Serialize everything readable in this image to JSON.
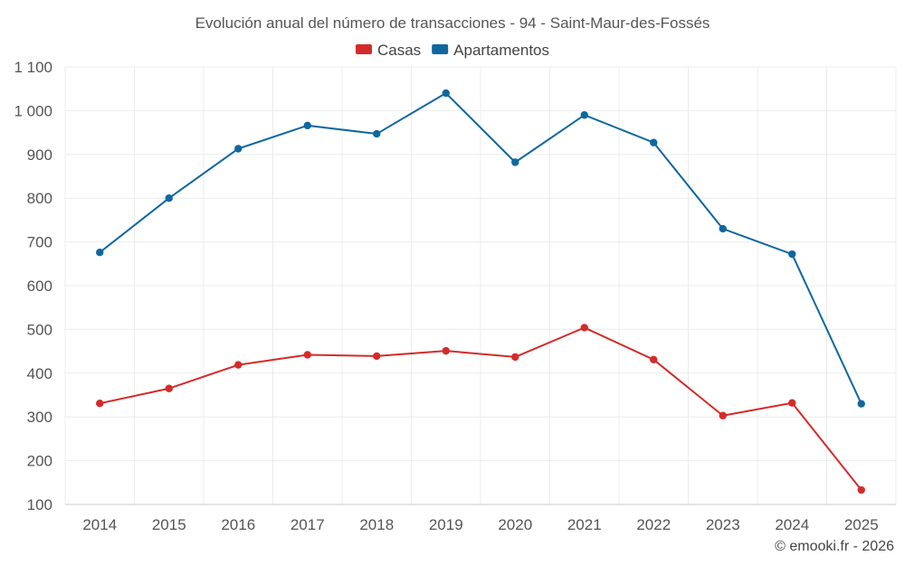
{
  "chart_data": {
    "type": "line",
    "title": "Evolución anual del número de transacciones - 94 - Saint-Maur-des-Fossés",
    "xlabel": "",
    "ylabel": "",
    "categories": [
      "2014",
      "2015",
      "2016",
      "2017",
      "2018",
      "2019",
      "2020",
      "2021",
      "2022",
      "2023",
      "2024",
      "2025"
    ],
    "series": [
      {
        "name": "Casas",
        "color": "#d42b2b",
        "values": [
          331,
          365,
          419,
          442,
          439,
          451,
          437,
          504,
          431,
          303,
          332,
          133
        ]
      },
      {
        "name": "Apartamentos",
        "color": "#0f67a0",
        "values": [
          676,
          800,
          913,
          966,
          947,
          1040,
          882,
          990,
          927,
          730,
          672,
          330
        ]
      }
    ],
    "ylim": [
      100,
      1100
    ],
    "yticks": [
      100,
      200,
      300,
      400,
      500,
      600,
      700,
      800,
      900,
      1000,
      1100
    ],
    "ytick_labels": [
      "100",
      "200",
      "300",
      "400",
      "500",
      "600",
      "700",
      "800",
      "900",
      "1 000",
      "1 100"
    ],
    "grid": true,
    "legend_position": "top-center"
  },
  "credit": "© emooki.fr - 2026"
}
